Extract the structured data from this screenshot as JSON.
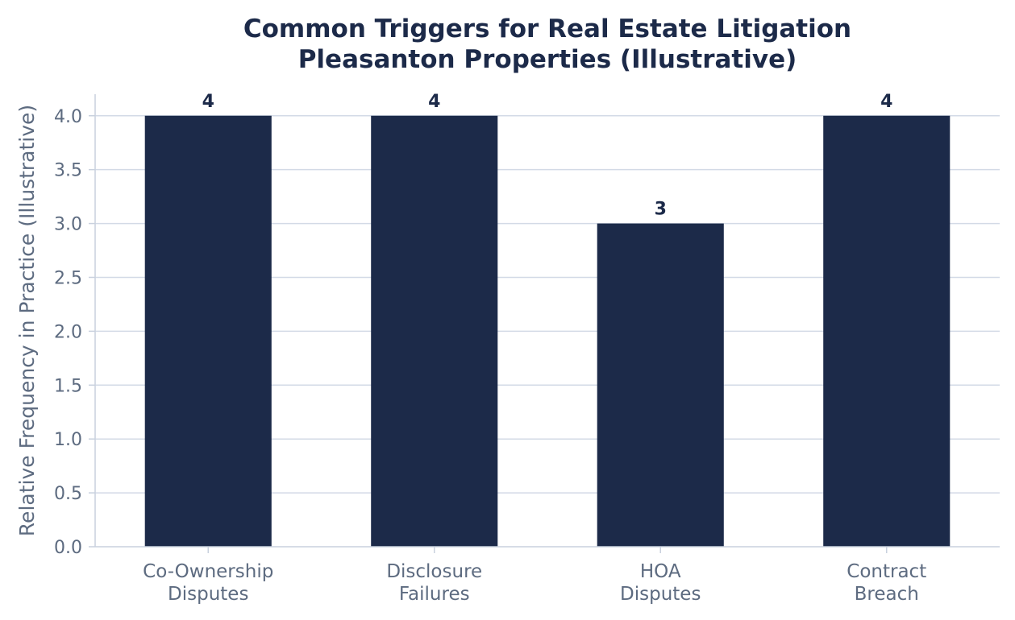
{
  "chart_data": {
    "type": "bar",
    "title": "Common Triggers for Real Estate Litigation",
    "subtitle": "Pleasanton Properties (Illustrative)",
    "xlabel": "",
    "ylabel": "Relative Frequency in Practice (Illustrative)",
    "categories": [
      [
        "Co-Ownership",
        "Disputes"
      ],
      [
        "Disclosure",
        "Failures"
      ],
      [
        "HOA",
        "Disputes"
      ],
      [
        "Contract",
        "Breach"
      ]
    ],
    "values": [
      4,
      4,
      3,
      4
    ],
    "data_labels": [
      "4",
      "4",
      "3",
      "4"
    ],
    "ylim": [
      0,
      4.2
    ],
    "yticks": [
      "0.0",
      "0.5",
      "1.0",
      "1.5",
      "2.0",
      "2.5",
      "3.0",
      "3.5",
      "4.0"
    ],
    "grid": "horizontal",
    "legend": "none",
    "bar_color": "#1c2a49"
  }
}
